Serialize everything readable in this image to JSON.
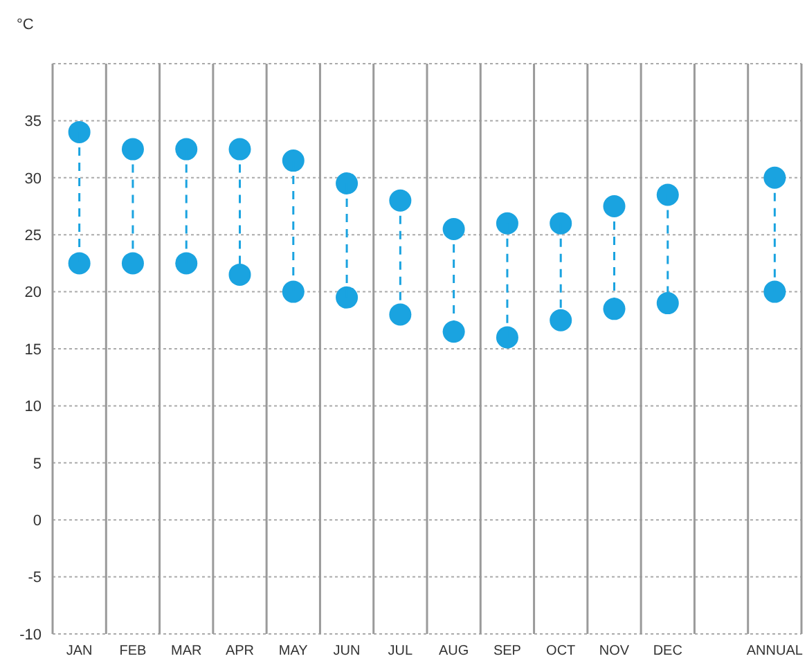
{
  "chart_data": {
    "type": "scatter",
    "ylabel": "°C",
    "categories": [
      "JAN",
      "FEB",
      "MAR",
      "APR",
      "MAY",
      "JUN",
      "JUL",
      "AUG",
      "SEP",
      "OCT",
      "NOV",
      "DEC",
      null,
      "ANNUAL"
    ],
    "series": [
      {
        "color": "#1aa3e0",
        "values": [
          34,
          32.5,
          32.5,
          32.5,
          31.5,
          29.5,
          28,
          25.5,
          26,
          26,
          27.5,
          28.5,
          null,
          30
        ]
      },
      {
        "color": "#1aa3e0",
        "values": [
          22.5,
          22.5,
          22.5,
          21.5,
          20,
          19.5,
          18,
          16.5,
          16,
          17.5,
          18.5,
          19,
          null,
          20
        ]
      }
    ],
    "ylim": [
      -10,
      40
    ],
    "yticks": [
      -10,
      -5,
      0,
      5,
      10,
      15,
      20,
      25,
      30,
      35,
      {
        "value": 40,
        "label": null
      }
    ],
    "grid": true,
    "marker": "circle"
  }
}
